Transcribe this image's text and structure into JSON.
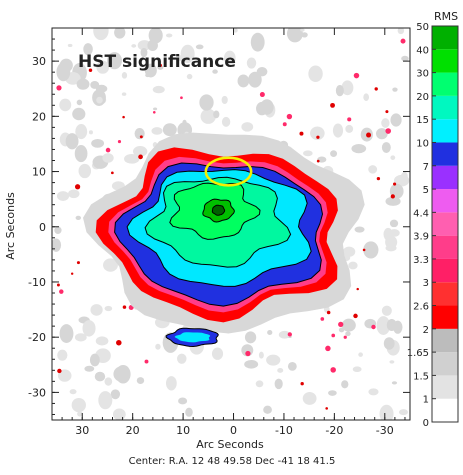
{
  "chart_data": {
    "type": "heatmap",
    "title": "HST significance",
    "xlabel": "Arc Seconds",
    "ylabel": "Arc Seconds",
    "xlim": [
      36,
      -35
    ],
    "ylim": [
      -35,
      36
    ],
    "x_ticks": [
      30,
      20,
      10,
      0,
      -10,
      -20,
      -30
    ],
    "y_ticks": [
      30,
      20,
      10,
      0,
      -10,
      -20,
      -30
    ],
    "grid": false,
    "colorbar": {
      "title": "RMS",
      "levels": [
        "0",
        "1",
        "1.5",
        "1.65",
        "2",
        "2.6",
        "3",
        "3.3",
        "3.9",
        "4.4",
        "5",
        "7",
        "10",
        "15",
        "20",
        "30",
        "40",
        "50"
      ],
      "colors": [
        "#ffffff",
        "#e3e3e3",
        "#d0d0d0",
        "#bcbcbc",
        "#ff0000",
        "#ff3030",
        "#ff1f66",
        "#ff3d8a",
        "#ff5fb0",
        "#ee5cf0",
        "#9a30ff",
        "#2030e0",
        "#00f0ff",
        "#00f8c0",
        "#00ff70",
        "#00e000",
        "#00b000",
        "#007a00"
      ]
    },
    "center_label": "Center:  R.A. 12 48 49.58    Dec  -41 18 41.5",
    "overlay": {
      "shape": "ellipse",
      "color": "#f6f000",
      "center": [
        1,
        10
      ],
      "radii": [
        4.5,
        2.5
      ]
    }
  }
}
